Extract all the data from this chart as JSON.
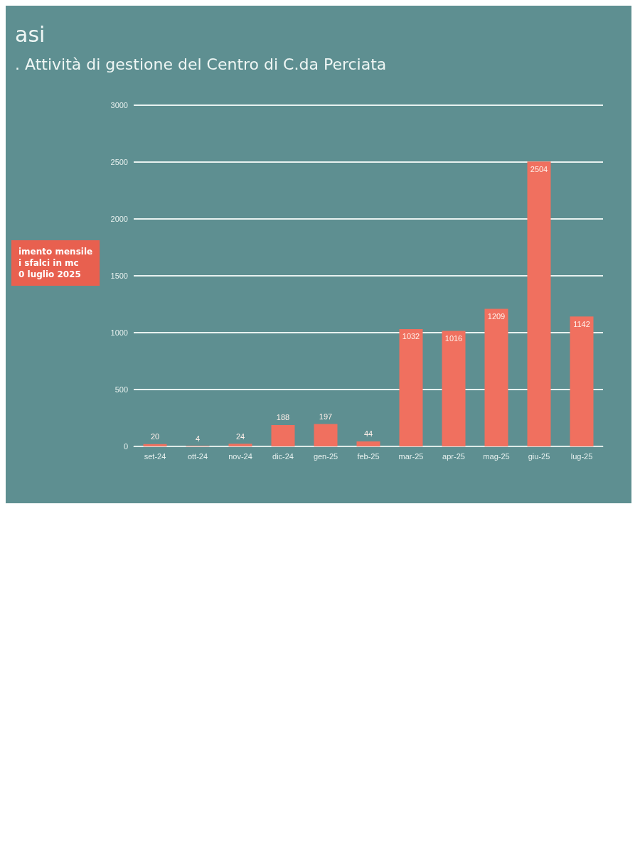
{
  "chart_data": {
    "type": "bar",
    "title": "asi",
    "subtitle": ". Attività di gestione del Centro di C.da Perciata",
    "annotations": [
      "imento mensile\ni sfalci in mc\n0 luglio 2025"
    ],
    "categories": [
      "set-24",
      "ott-24",
      "nov-24",
      "dic-24",
      "gen-25",
      "feb-25",
      "mar-25",
      "apr-25",
      "mag-25",
      "giu-25",
      "lug-25"
    ],
    "values": [
      20,
      4,
      24,
      188,
      197,
      44,
      1032,
      1016,
      1209,
      2504,
      1142
    ],
    "color": "#f0705f",
    "ylim": [
      0,
      3000
    ],
    "yticks": [
      0,
      500,
      1000,
      1500,
      2000,
      2500,
      3000
    ],
    "grid": "y",
    "data_labels": true
  }
}
